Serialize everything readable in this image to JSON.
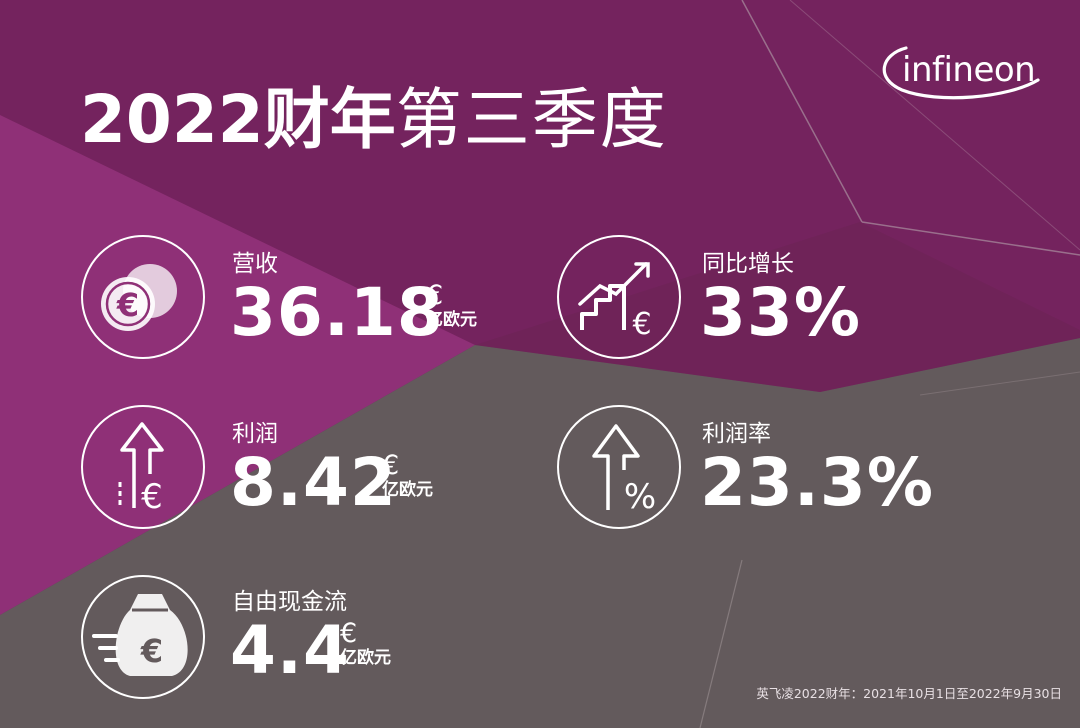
{
  "title": {
    "bold": "2022财年",
    "light": "第三季度"
  },
  "logo": {
    "text": "infineon"
  },
  "metrics": {
    "revenue": {
      "label": "营收",
      "value": "36.18",
      "currency": "€",
      "unit": "亿欧元",
      "icon": "euro-coins-icon"
    },
    "growth": {
      "label": "同比增长",
      "value": "33%",
      "icon": "growth-chart-icon"
    },
    "profit": {
      "label": "利润",
      "value": "8.42",
      "currency": "€",
      "unit": "亿欧元",
      "icon": "profit-arrow-icon"
    },
    "margin": {
      "label": "利润率",
      "value": "23.3%",
      "icon": "margin-percent-icon"
    },
    "cashflow": {
      "label": "自由现金流",
      "value": "4.4",
      "currency": "€",
      "unit": "亿欧元",
      "icon": "money-bag-icon"
    }
  },
  "footnote": "英飞凌2022财年：2021年10月1日至2022年9月30日",
  "colors": {
    "purple": "#74235e",
    "magenta": "#8f2f76",
    "gray": "#635a5c",
    "text": "#ffffff"
  }
}
